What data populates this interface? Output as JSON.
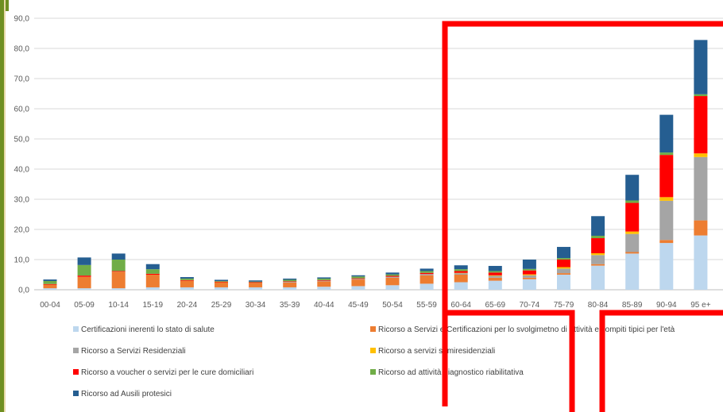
{
  "chart_data": {
    "type": "bar",
    "stacked": true,
    "title": "",
    "xlabel": "",
    "ylabel": "",
    "ylim": [
      0,
      90
    ],
    "y_ticks": [
      "0,0",
      "10,0",
      "20,0",
      "30,0",
      "40,0",
      "50,0",
      "60,0",
      "70,0",
      "80,0",
      "90,0"
    ],
    "grid": true,
    "legend_position": "bottom",
    "categories": [
      "00-04",
      "05-09",
      "10-14",
      "15-19",
      "20-24",
      "25-29",
      "30-34",
      "35-39",
      "40-44",
      "45-49",
      "50-54",
      "55-59",
      "60-64",
      "65-69",
      "70-74",
      "75-79",
      "80-84",
      "85-89",
      "90-94",
      "95 e+"
    ],
    "series": [
      {
        "name": "Certificazioni inerenti lo stato di salute",
        "color": "#bdd7ee",
        "values": [
          0.5,
          0.5,
          0.5,
          0.8,
          0.8,
          0.8,
          0.8,
          0.8,
          1.0,
          1.2,
          1.5,
          2.0,
          2.5,
          3.0,
          3.5,
          5.0,
          8.0,
          12.0,
          15.5,
          18.0
        ]
      },
      {
        "name": "Ricorso a Servizi e Certificazioni per lo svolgimetno di attività e compiti tipici per l'età",
        "color": "#ed7d31",
        "values": [
          1.2,
          3.8,
          5.5,
          4.2,
          2.2,
          1.7,
          1.5,
          1.6,
          1.8,
          2.2,
          2.5,
          2.8,
          2.5,
          1.0,
          0.5,
          0.5,
          0.5,
          0.5,
          1.0,
          5.0
        ]
      },
      {
        "name": "Ricorso a Servizi Residenziali",
        "color": "#a5a5a5",
        "values": [
          0,
          0,
          0,
          0,
          0,
          0,
          0,
          0.2,
          0.2,
          0.2,
          0.3,
          0.4,
          0.5,
          0.6,
          0.8,
          1.5,
          3.0,
          6.0,
          13.0,
          21.0
        ]
      },
      {
        "name": "Ricorso a servizi semiresidenziali",
        "color": "#ffc000",
        "values": [
          0,
          0,
          0,
          0,
          0,
          0,
          0,
          0,
          0,
          0,
          0,
          0,
          0.1,
          0.2,
          0.3,
          0.5,
          0.6,
          0.8,
          1.2,
          1.2
        ]
      },
      {
        "name": "Ricorso a voucher o servizi per le cure domiciliari",
        "color": "#ff0000",
        "values": [
          0.2,
          0.4,
          0.2,
          0.3,
          0.2,
          0.2,
          0.2,
          0.2,
          0.2,
          0.2,
          0.3,
          0.4,
          0.6,
          0.9,
          1.3,
          2.5,
          5.0,
          9.5,
          14.0,
          19.0
        ]
      },
      {
        "name": "Ricorso ad attività diagnostico riabilitativa",
        "color": "#70ad47",
        "values": [
          1.0,
          3.5,
          3.8,
          1.5,
          0.5,
          0.2,
          0.2,
          0.5,
          0.5,
          0.6,
          0.5,
          0.6,
          0.6,
          0.5,
          0.5,
          0.5,
          0.8,
          0.8,
          0.8,
          0.6
        ]
      },
      {
        "name": "Ricorso ad Ausili protesici",
        "color": "#255e91",
        "values": [
          0.5,
          2.5,
          2.0,
          1.7,
          0.5,
          0.4,
          0.4,
          0.4,
          0.4,
          0.4,
          0.6,
          0.8,
          1.3,
          1.7,
          3.1,
          3.7,
          6.5,
          8.5,
          12.5,
          18.0
        ]
      }
    ]
  }
}
